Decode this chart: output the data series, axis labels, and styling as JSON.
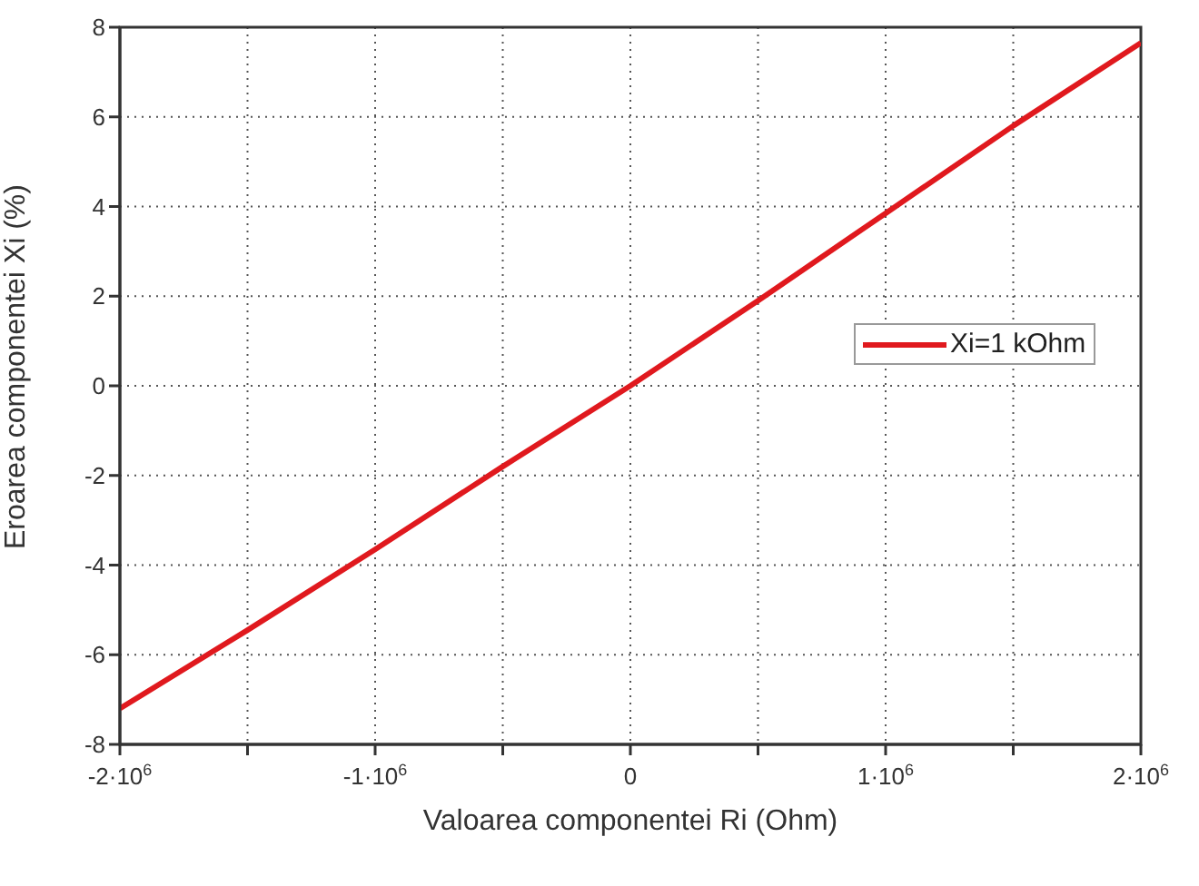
{
  "chart_data": {
    "type": "line",
    "xlabel": "Valoarea componentei Ri (Ohm)",
    "ylabel": "Eroarea componentei Xi (%)",
    "x": [
      -2000000,
      -1500000,
      -1000000,
      -500000,
      0,
      500000,
      1000000,
      1500000,
      2000000
    ],
    "series": [
      {
        "name": "Xi=1 kOhm",
        "color": "#e0191e",
        "values": [
          -7.2,
          -5.45,
          -3.65,
          -1.8,
          0,
          1.9,
          3.85,
          5.8,
          7.65
        ]
      }
    ],
    "xlim": [
      -2000000,
      2000000
    ],
    "xticks": [
      {
        "value": -2000000,
        "label": "-2·10$^{6}$"
      },
      {
        "value": -1500000,
        "label": null
      },
      {
        "value": -1000000,
        "label": "-1·10$^{6}$"
      },
      {
        "value": -500000,
        "label": null
      },
      0,
      {
        "value": 500000,
        "label": null
      },
      {
        "value": 1000000,
        "label": "1·10$^{6}$"
      },
      {
        "value": 1500000,
        "label": null
      },
      {
        "value": 2000000,
        "label": "2·10$^{6}$"
      }
    ],
    "ylim": [
      -8,
      8
    ],
    "yticks": [
      -8,
      -6,
      -4,
      -2,
      0,
      2,
      4,
      6,
      8
    ],
    "grid": true,
    "legend": "right",
    "marker": "none",
    "line_style": "solid"
  }
}
